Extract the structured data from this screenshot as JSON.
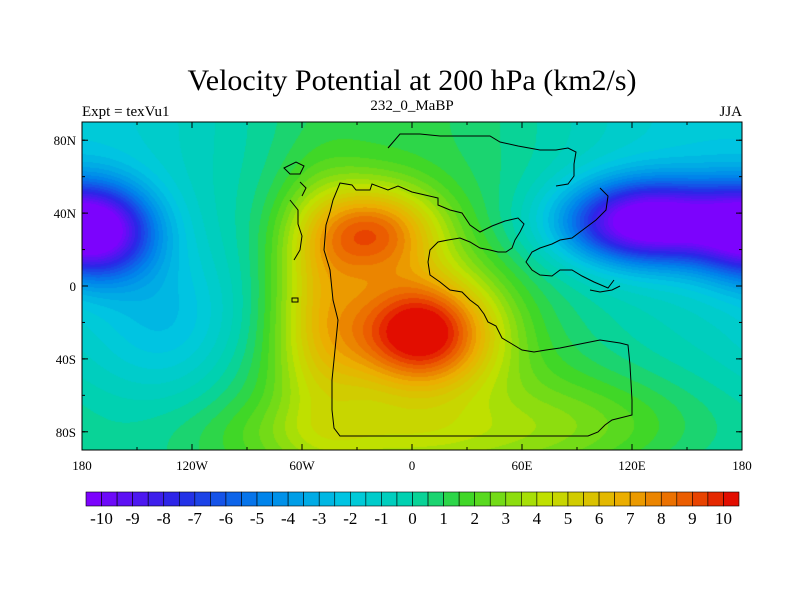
{
  "chart_data": {
    "type": "heatmap",
    "title": "Velocity Potential at 200 hPa (km2/s)",
    "subtitle_left": "Expt = texVu1",
    "subtitle_center": "232_0_MaBP",
    "subtitle_right": "JJA",
    "x_ticks": [
      {
        "value": -180,
        "label": "180"
      },
      {
        "value": -120,
        "label": "120W"
      },
      {
        "value": -60,
        "label": "60W"
      },
      {
        "value": 0,
        "label": "0"
      },
      {
        "value": 60,
        "label": "60E"
      },
      {
        "value": 120,
        "label": "120E"
      },
      {
        "value": 180,
        "label": "180"
      }
    ],
    "y_ticks": [
      {
        "value": 80,
        "label": "80N"
      },
      {
        "value": 40,
        "label": "40N"
      },
      {
        "value": 0,
        "label": "0"
      },
      {
        "value": -40,
        "label": "40S"
      },
      {
        "value": -80,
        "label": "80S"
      }
    ],
    "xlim": [
      -180,
      180
    ],
    "ylim": [
      -90,
      90
    ],
    "colorbar": {
      "min": -10.5,
      "max": 10.5,
      "step": 0.5,
      "tick_labels": [
        "-10",
        "-9",
        "-8",
        "-7",
        "-6",
        "-5",
        "-4",
        "-3",
        "-2",
        "-1",
        "0",
        "1",
        "2",
        "3",
        "4",
        "5",
        "6",
        "7",
        "8",
        "9",
        "10"
      ],
      "tick_values": [
        -10,
        -9,
        -8,
        -7,
        -6,
        -5,
        -4,
        -3,
        -2,
        -1,
        0,
        1,
        2,
        3,
        4,
        5,
        6,
        7,
        8,
        9,
        10
      ]
    },
    "field_centers": [
      {
        "name": "max_africa",
        "lon": 5,
        "lat": -25,
        "value": 10.3
      },
      {
        "name": "max_north_africa",
        "lon": -20,
        "lat": 30,
        "value": 7.0
      },
      {
        "name": "min_asia_pacific",
        "lon": 130,
        "lat": 35,
        "value": -10.0
      },
      {
        "name": "min_east_pacific",
        "lon": -170,
        "lat": 30,
        "value": -9.0
      }
    ]
  }
}
